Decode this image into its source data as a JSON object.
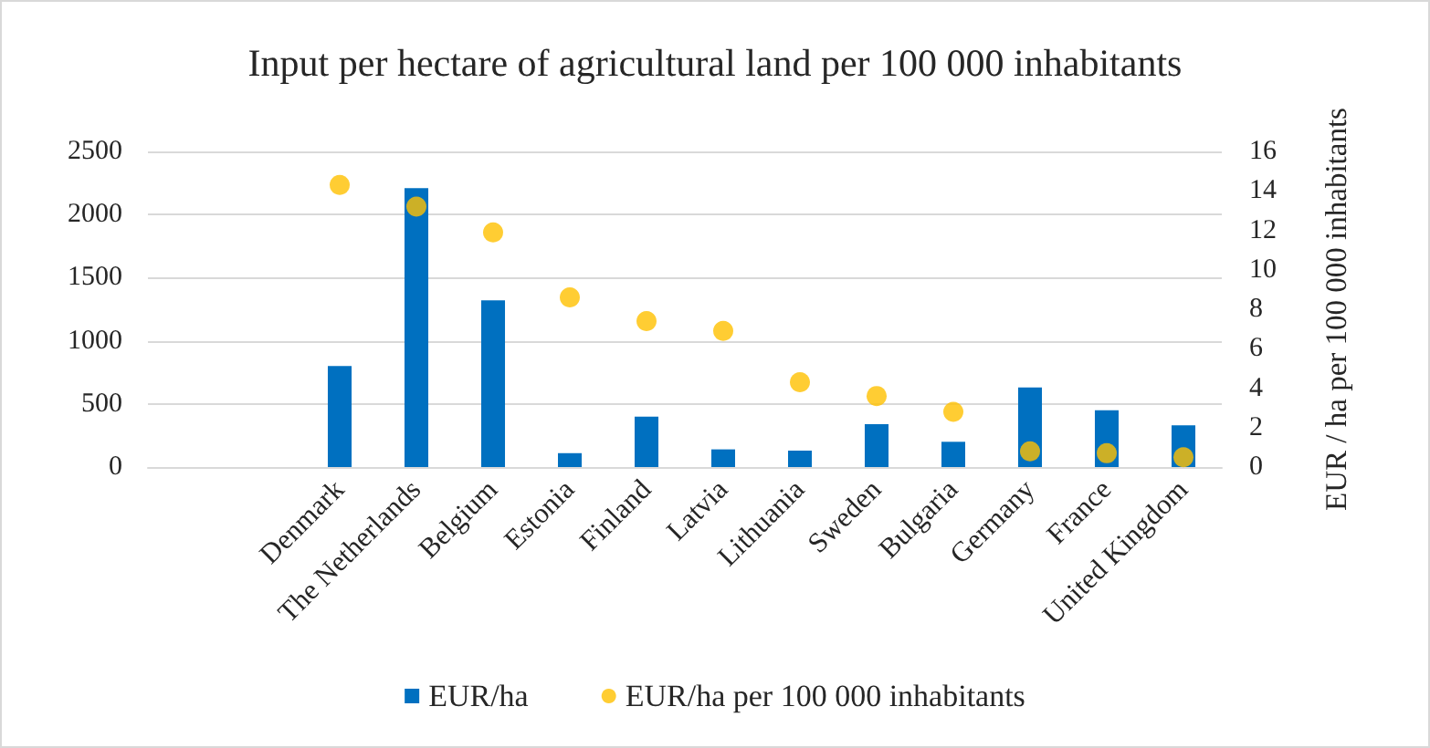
{
  "chart_data": {
    "type": "bar",
    "title": "Input per hectare of agricultural land per 100 000 inhabitants",
    "categories": [
      null,
      null,
      "Denmark",
      "The Netherlands",
      "Belgium",
      "Estonia",
      "Finland",
      "Latvia",
      "Lithuania",
      "Sweden",
      "Bulgaria",
      "Germany",
      "France",
      "United Kingdom"
    ],
    "series": [
      {
        "name": "EUR/ha",
        "color": "#0070c0",
        "values": [
          null,
          null,
          800,
          2210,
          1320,
          110,
          400,
          140,
          130,
          340,
          200,
          630,
          450,
          330
        ]
      },
      {
        "name": "EUR/ha per 100 000 inhabitants",
        "type": "scatter",
        "axis": "y2",
        "marker": "circle",
        "color": "#ffc000",
        "values": [
          null,
          null,
          14.3,
          13.2,
          11.9,
          8.6,
          7.4,
          6.9,
          4.3,
          3.6,
          2.8,
          0.8,
          0.7,
          0.5
        ]
      }
    ],
    "ylim": [
      0,
      2500
    ],
    "yticks": [
      0,
      500,
      1000,
      1500,
      2000,
      2500
    ],
    "y2lim": [
      0,
      16
    ],
    "y2ticks": [
      0,
      2,
      4,
      6,
      8,
      10,
      12,
      14,
      16
    ],
    "y2label": "EUR / ha per 100 000 inhabitants",
    "grid": "y",
    "legend": "bottom"
  }
}
